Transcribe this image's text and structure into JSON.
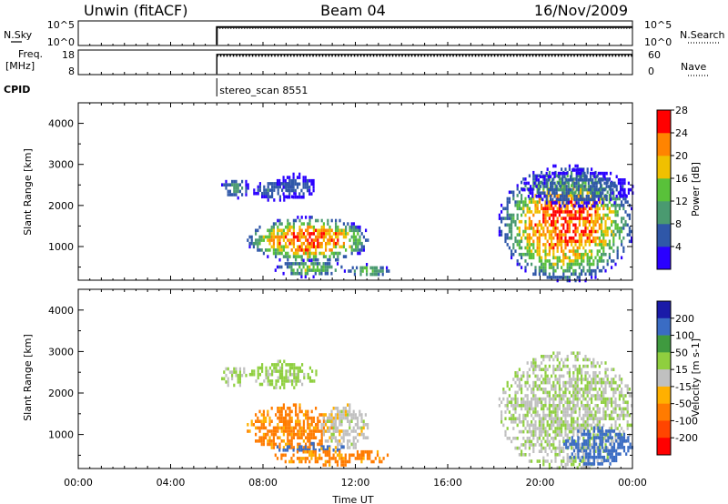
{
  "header": {
    "station": "Unwin (fitACF)",
    "beam": "Beam 04",
    "date": "16/Nov/2009"
  },
  "strip_labels": {
    "nsky": "N.Sky",
    "nsearch": "N.Search",
    "freq_line1": "Freq.",
    "freq_line2": "[MHz]",
    "nave": "Nave",
    "cpid": "CPID",
    "nsky_top_tick": "10^5",
    "nsky_bottom_tick": "10^0",
    "freq_top_tick": "18",
    "freq_bottom_tick": "8",
    "nave_top_tick": "60",
    "nave_bottom_tick": "0"
  },
  "program": {
    "label": "stereo_scan 8551",
    "start_hour": 6.0
  },
  "chart_data": [
    {
      "type": "line",
      "title": "N.Sky / N.Search",
      "x_unit": "hours UT",
      "xlim": [
        0,
        24
      ],
      "series": [
        {
          "name": "N.Sky",
          "x": [
            6.0,
            6.0,
            24.0
          ],
          "values": [
            0,
            10000,
            10000
          ]
        },
        {
          "name": "N.Search",
          "x": [
            6.0,
            24.0
          ],
          "values": [
            10000,
            10000
          ]
        }
      ]
    },
    {
      "type": "line",
      "title": "Freq. [MHz] / Nave",
      "x_unit": "hours UT",
      "xlim": [
        0,
        24
      ],
      "ylim_freq": [
        8,
        18
      ],
      "ylim_nave": [
        0,
        60
      ],
      "series": [
        {
          "name": "Freq.",
          "x": [
            6.0,
            6.0,
            24.0
          ],
          "values": [
            8,
            16.5,
            16.5
          ]
        },
        {
          "name": "Nave",
          "x": [
            6.0,
            24.0
          ],
          "values": [
            47,
            47
          ]
        }
      ]
    },
    {
      "type": "heatmap",
      "ylabel": "Slant Range [km]",
      "ylim": [
        180,
        4500
      ],
      "y_ticks": [
        "1000",
        "2000",
        "3000",
        "4000"
      ],
      "colorbar_title": "Power [dB]",
      "colorbar_ticks": [
        "4",
        "8",
        "12",
        "16",
        "20",
        "24",
        "28"
      ],
      "colorbar_colors": [
        "#2a00ff",
        "#2f57a8",
        "#4a9a70",
        "#59c13a",
        "#f0c000",
        "#ff8400",
        "#ff0000"
      ],
      "regions": [
        {
          "t0": 6.1,
          "t1": 7.4,
          "r0": 2200,
          "r1": 2700,
          "max": 12
        },
        {
          "t0": 7.4,
          "t1": 9.5,
          "r0": 2150,
          "r1": 2650,
          "max": 9
        },
        {
          "t0": 8.5,
          "t1": 10.3,
          "r0": 2200,
          "r1": 2800,
          "max": 8
        },
        {
          "t0": 7.3,
          "t1": 12.6,
          "r0": 650,
          "r1": 1750,
          "max": 31
        },
        {
          "t0": 8.5,
          "t1": 11.5,
          "r0": 300,
          "r1": 700,
          "max": 18
        },
        {
          "t0": 11.5,
          "t1": 13.5,
          "r0": 300,
          "r1": 600,
          "max": 16
        },
        {
          "t0": 18.2,
          "t1": 24.0,
          "r0": 180,
          "r1": 3000,
          "max": 30
        },
        {
          "t0": 19.2,
          "t1": 24.0,
          "r0": 2000,
          "r1": 2900,
          "max": 10
        }
      ]
    },
    {
      "type": "heatmap",
      "ylabel": "Slant Range [km]",
      "xlabel": "Time UT",
      "ylim": [
        180,
        4500
      ],
      "y_ticks": [
        "1000",
        "2000",
        "3000",
        "4000"
      ],
      "x_ticks": [
        "00:00",
        "04:00",
        "08:00",
        "12:00",
        "16:00",
        "20:00",
        "00:00"
      ],
      "colorbar_title": "Velocity [m s-1]",
      "colorbar_ticks": [
        "200",
        "100",
        "50",
        "15",
        "-15",
        "-50",
        "-100",
        "-200"
      ],
      "colorbar_colors": [
        "#1a1aa8",
        "#3a6cc4",
        "#3f9a3f",
        "#8fcf3f",
        "#c0c0c0",
        "#ffb000",
        "#ff7b00",
        "#ff4500",
        "#ff0000"
      ],
      "regions": [
        {
          "t0": 6.1,
          "t1": 7.4,
          "r0": 2200,
          "r1": 2700,
          "velocity": 15
        },
        {
          "t0": 7.4,
          "t1": 10.3,
          "r0": 2150,
          "r1": 2800,
          "velocity": 30
        },
        {
          "t0": 7.3,
          "t1": 11.2,
          "r0": 650,
          "r1": 1750,
          "velocity": -60
        },
        {
          "t0": 10.5,
          "t1": 12.6,
          "r0": 650,
          "r1": 1750,
          "velocity": 0
        },
        {
          "t0": 8.5,
          "t1": 11.5,
          "r0": 600,
          "r1": 820,
          "velocity": 180
        },
        {
          "t0": 8.5,
          "t1": 13.5,
          "r0": 300,
          "r1": 700,
          "velocity": -60
        },
        {
          "t0": 18.2,
          "t1": 24.0,
          "r0": 180,
          "r1": 3000,
          "velocity": 10
        },
        {
          "t0": 21.0,
          "t1": 24.0,
          "r0": 300,
          "r1": 1200,
          "velocity": 150
        }
      ]
    }
  ]
}
